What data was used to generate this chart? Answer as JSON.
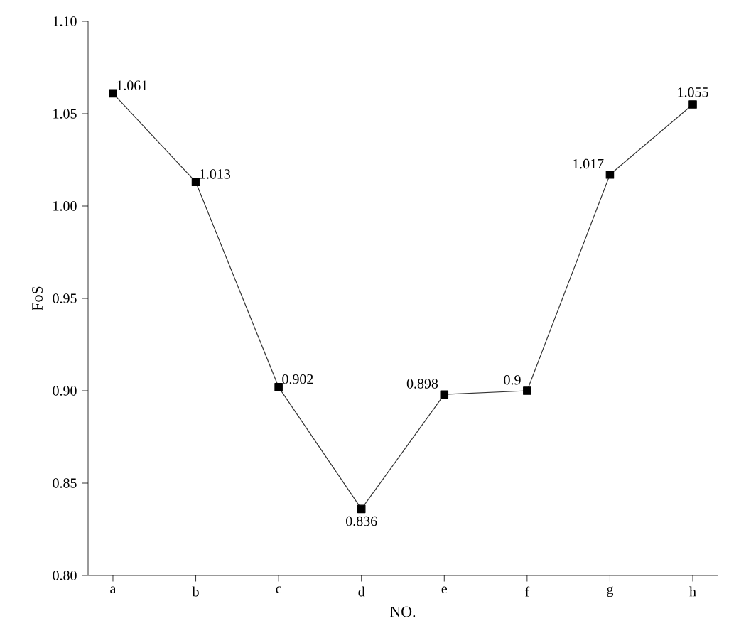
{
  "chart_data": {
    "type": "line",
    "xlabel": "NO.",
    "ylabel": "FoS",
    "categories": [
      "a",
      "b",
      "c",
      "d",
      "e",
      "f",
      "g",
      "h"
    ],
    "values": [
      1.061,
      1.013,
      0.902,
      0.836,
      0.898,
      0.9,
      1.017,
      1.055
    ],
    "value_labels": [
      "1.061",
      "1.013",
      "0.902",
      "0.836",
      "0.898",
      "0.9",
      "1.017",
      "1.055"
    ],
    "color": "#000000",
    "marker": "square",
    "line_style": "solid",
    "ylim": [
      0.8,
      1.1
    ],
    "yticks": [
      {
        "value": 0.8,
        "label": "0.80"
      },
      {
        "value": 0.85,
        "label": "0.85"
      },
      {
        "value": 0.9,
        "label": "0.90"
      },
      {
        "value": 0.95,
        "label": "0.95"
      },
      {
        "value": 1.0,
        "label": "1.00"
      },
      {
        "value": 1.05,
        "label": "1.05"
      },
      {
        "value": 1.1,
        "label": "1.10"
      }
    ]
  }
}
